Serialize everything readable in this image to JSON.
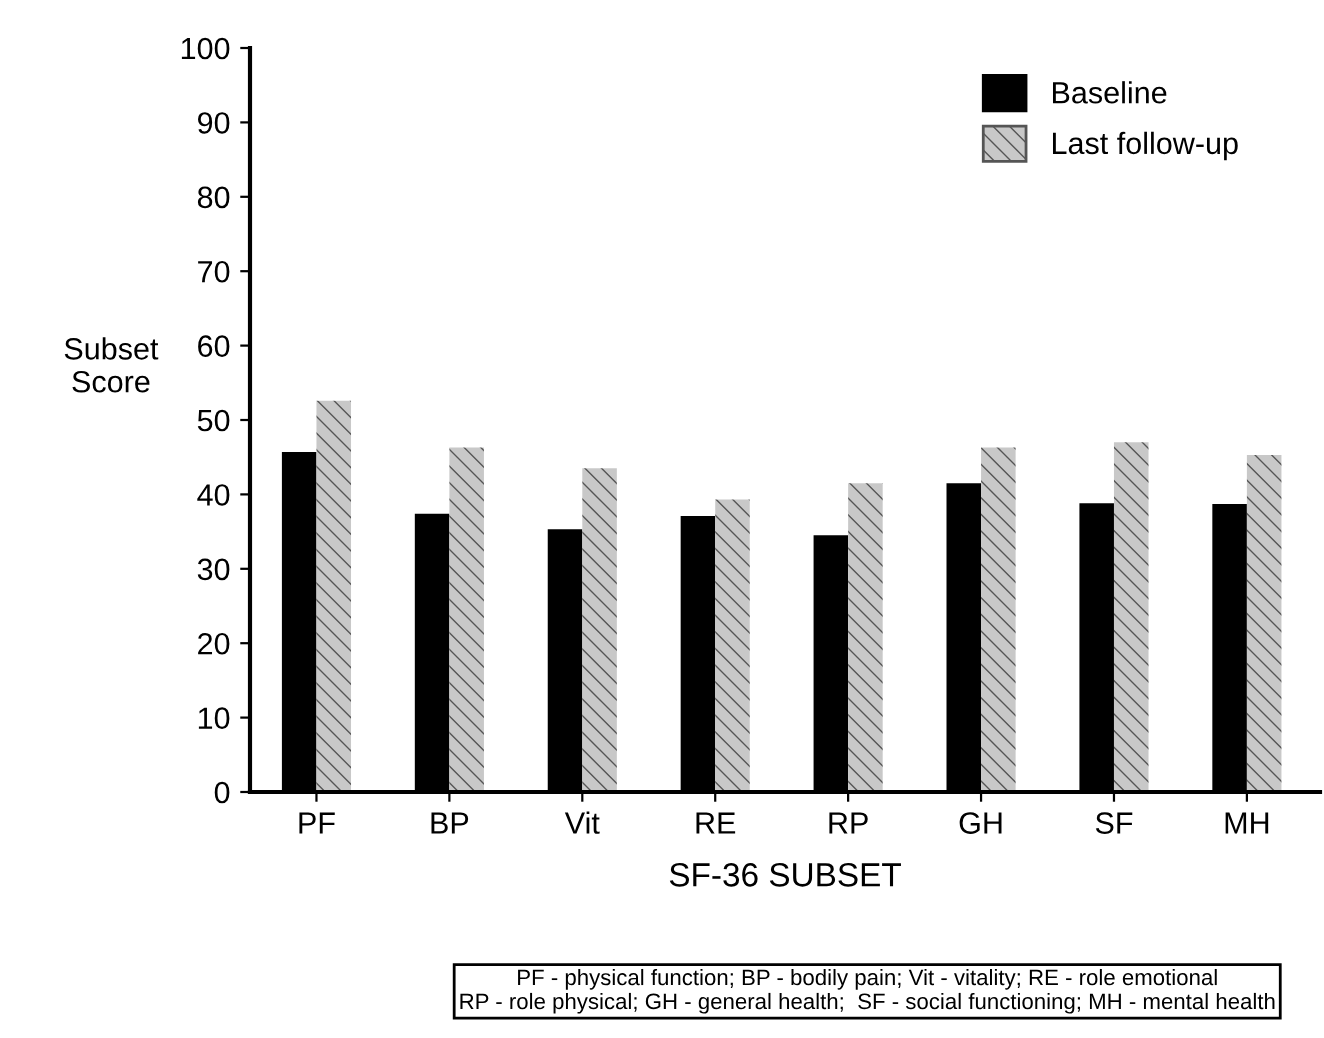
{
  "chart_data": {
    "type": "bar",
    "xlabel": "SF-36 SUBSET",
    "ylabel": "Subset Score",
    "categories": [
      "PF",
      "BP",
      "Vit",
      "RE",
      "RP",
      "GH",
      "SF",
      "MH"
    ],
    "series": [
      {
        "name": "Baseline",
        "color": "#000000",
        "values": [
          45.7,
          37.4,
          35.3,
          37.1,
          34.5,
          41.5,
          38.8,
          38.7
        ]
      },
      {
        "name": "Last follow-up",
        "color": "#c8c8c8",
        "values": [
          52.6,
          46.3,
          43.5,
          39.3,
          41.5,
          46.3,
          47.0,
          45.3
        ]
      }
    ],
    "ylim": [
      0,
      100
    ],
    "yticks": [
      0,
      10,
      20,
      30,
      40,
      50,
      60,
      70,
      80,
      90,
      100
    ],
    "grid": false,
    "legend": "top right",
    "annotations": [
      "PF - physical function; BP - bodily pain; Vit - vitality; RE - role emotional\nRP - role physical; GH - general health;  SF - social functioning; MH - mental health"
    ]
  }
}
